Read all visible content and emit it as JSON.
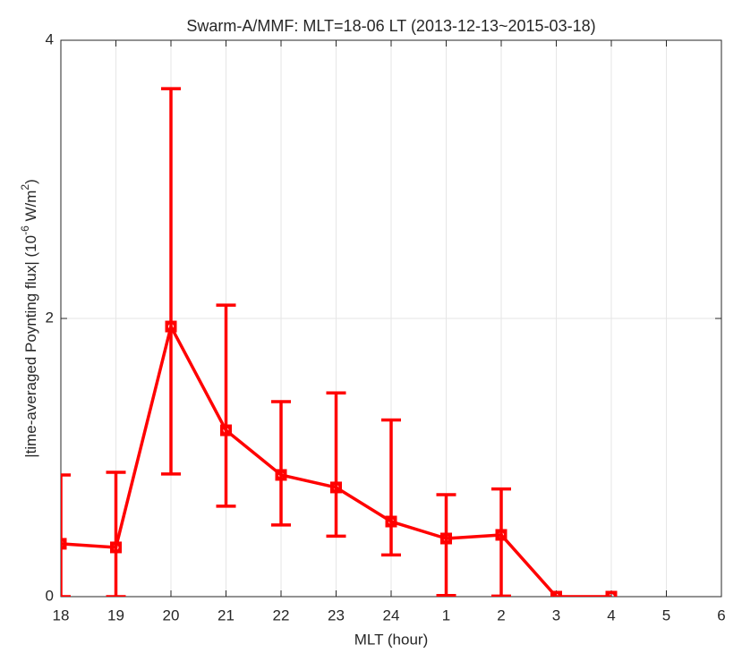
{
  "chart_data": {
    "type": "errorbar-line",
    "title": "Swarm-A/MMF: MLT=18-06 LT (2013-12-13~2015-03-18)",
    "x_label": "MLT (hour)",
    "y_label": [
      "|time-averaged Poynting flux| (10",
      "-6",
      " W/m",
      "2",
      ")"
    ],
    "categories": [
      "18",
      "19",
      "20",
      "21",
      "22",
      "23",
      "24",
      "1",
      "2",
      "3",
      "4",
      "5",
      "6"
    ],
    "series": [
      {
        "color": "#ff0000",
        "values": [
          0.38,
          0.354,
          1.942,
          1.196,
          0.875,
          0.785,
          0.54,
          0.418,
          0.444,
          0,
          0,
          null,
          null
        ],
        "errors_minus": [
          0.38,
          0.354,
          1.06,
          0.546,
          0.36,
          0.35,
          0.24,
          0.41,
          0.44,
          0,
          0,
          null,
          null
        ],
        "errors_plus": [
          0.495,
          0.54,
          1.71,
          0.9,
          0.527,
          0.68,
          0.73,
          0.315,
          0.33,
          0,
          0,
          null,
          null
        ]
      }
    ],
    "ylim": [
      0,
      4
    ],
    "yticks": [
      0,
      2,
      4
    ],
    "grid": true
  }
}
